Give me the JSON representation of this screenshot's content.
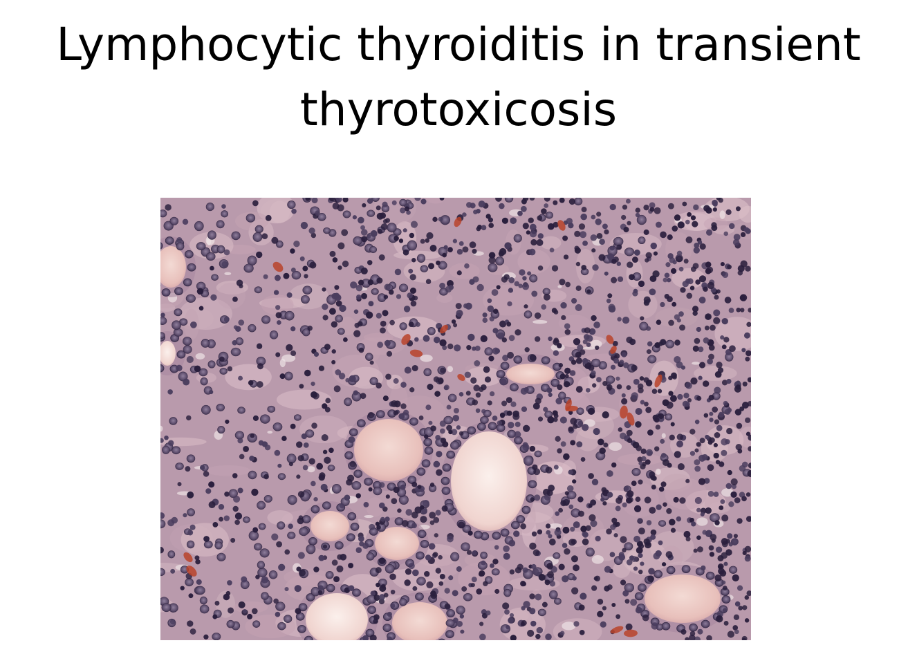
{
  "slide": {
    "title": "Lymphocytic thyroiditis in transient thyrotoxicosis"
  },
  "image": {
    "kind": "histology-micrograph",
    "stain": "hematoxylin-eosin",
    "colors": {
      "background": "#b99aac",
      "stroma": "#c4a3b3",
      "colloid": "#ebc8c3",
      "colloid_pale": "#f6e6e2",
      "nucleus_dark": "#2a1f3d",
      "nucleus_mid": "#4a3d5e",
      "nucleus_follicular": "#6a5a78",
      "rbc": "#b8432a"
    }
  }
}
